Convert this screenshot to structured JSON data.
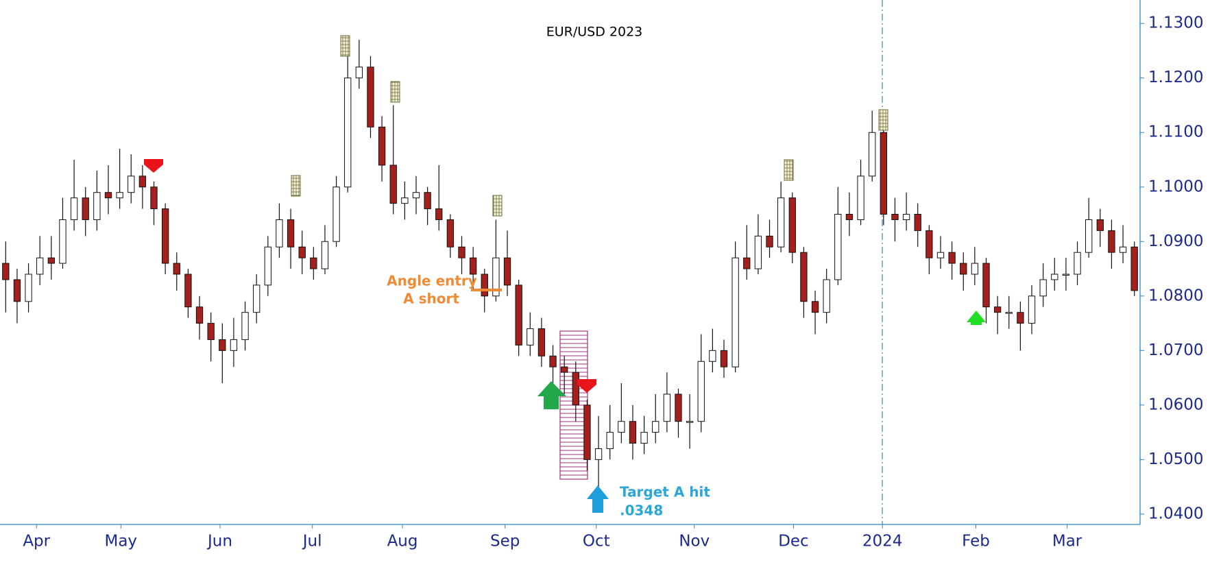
{
  "chart_data": {
    "type": "candlestick",
    "title": "EUR/USD 2023",
    "open": [
      1.086,
      1.083,
      1.079,
      1.084,
      1.087,
      1.086,
      1.094,
      1.098,
      1.094,
      1.099,
      1.098,
      1.099,
      1.102,
      1.1,
      1.096,
      1.086,
      1.084,
      1.078,
      1.075,
      1.072,
      1.07,
      1.072,
      1.077,
      1.082,
      1.089,
      1.094,
      1.089,
      1.087,
      1.085,
      1.09,
      1.1,
      1.12,
      1.122,
      1.111,
      1.104,
      1.097,
      1.098,
      1.099,
      1.096,
      1.094,
      1.089,
      1.087,
      1.084,
      1.08,
      1.087,
      1.082,
      1.071,
      1.074,
      1.069,
      1.067,
      1.066,
      1.06,
      1.05,
      1.052,
      1.055,
      1.057,
      1.053,
      1.055,
      1.057,
      1.062,
      1.057,
      1.057,
      1.068,
      1.07,
      1.067,
      1.087,
      1.085,
      1.091,
      1.089,
      1.098,
      1.088,
      1.079,
      1.077,
      1.083,
      1.095,
      1.094,
      1.102,
      1.11,
      1.095,
      1.094,
      1.095,
      1.092,
      1.087,
      1.088,
      1.086,
      1.084,
      1.086,
      1.078,
      1.077,
      1.077,
      1.075,
      1.08,
      1.083,
      1.084,
      1.084,
      1.088,
      1.094,
      1.092,
      1.088,
      1.089
    ],
    "high": [
      1.09,
      1.085,
      1.086,
      1.091,
      1.091,
      1.098,
      1.105,
      1.1,
      1.103,
      1.104,
      1.107,
      1.106,
      1.104,
      1.101,
      1.097,
      1.088,
      1.085,
      1.08,
      1.077,
      1.075,
      1.076,
      1.079,
      1.084,
      1.091,
      1.097,
      1.096,
      1.092,
      1.089,
      1.093,
      1.102,
      1.124,
      1.127,
      1.124,
      1.113,
      1.115,
      1.101,
      1.102,
      1.1,
      1.104,
      1.095,
      1.091,
      1.089,
      1.085,
      1.094,
      1.092,
      1.083,
      1.077,
      1.076,
      1.071,
      1.069,
      1.068,
      1.061,
      1.058,
      1.06,
      1.064,
      1.06,
      1.058,
      1.062,
      1.066,
      1.063,
      1.062,
      1.073,
      1.074,
      1.072,
      1.09,
      1.093,
      1.095,
      1.094,
      1.101,
      1.099,
      1.089,
      1.081,
      1.085,
      1.1,
      1.099,
      1.105,
      1.114,
      1.112,
      1.098,
      1.099,
      1.097,
      1.093,
      1.091,
      1.09,
      1.088,
      1.089,
      1.087,
      1.08,
      1.08,
      1.079,
      1.082,
      1.086,
      1.087,
      1.087,
      1.09,
      1.098,
      1.096,
      1.094,
      1.093,
      1.09
    ],
    "low": [
      1.077,
      1.075,
      1.077,
      1.082,
      1.083,
      1.085,
      1.092,
      1.091,
      1.092,
      1.095,
      1.096,
      1.097,
      1.096,
      1.093,
      1.084,
      1.081,
      1.076,
      1.072,
      1.068,
      1.064,
      1.067,
      1.07,
      1.075,
      1.08,
      1.087,
      1.085,
      1.084,
      1.083,
      1.084,
      1.089,
      1.099,
      1.118,
      1.109,
      1.101,
      1.095,
      1.094,
      1.095,
      1.093,
      1.092,
      1.087,
      1.084,
      1.081,
      1.077,
      1.079,
      1.08,
      1.069,
      1.069,
      1.067,
      1.064,
      1.062,
      1.057,
      1.048,
      1.045,
      1.05,
      1.053,
      1.05,
      1.051,
      1.053,
      1.055,
      1.054,
      1.052,
      1.055,
      1.066,
      1.065,
      1.066,
      1.083,
      1.084,
      1.087,
      1.088,
      1.086,
      1.076,
      1.073,
      1.075,
      1.082,
      1.091,
      1.093,
      1.101,
      1.093,
      1.09,
      1.092,
      1.089,
      1.084,
      1.085,
      1.083,
      1.081,
      1.082,
      1.075,
      1.073,
      1.074,
      1.07,
      1.073,
      1.078,
      1.081,
      1.081,
      1.082,
      1.087,
      1.089,
      1.085,
      1.086,
      1.08
    ],
    "close": [
      1.083,
      1.079,
      1.084,
      1.087,
      1.086,
      1.094,
      1.098,
      1.094,
      1.099,
      1.098,
      1.099,
      1.102,
      1.1,
      1.096,
      1.086,
      1.084,
      1.078,
      1.075,
      1.072,
      1.07,
      1.072,
      1.077,
      1.082,
      1.089,
      1.094,
      1.089,
      1.087,
      1.085,
      1.09,
      1.1,
      1.12,
      1.122,
      1.111,
      1.104,
      1.097,
      1.098,
      1.099,
      1.096,
      1.094,
      1.089,
      1.087,
      1.084,
      1.08,
      1.087,
      1.082,
      1.071,
      1.074,
      1.069,
      1.067,
      1.066,
      1.06,
      1.05,
      1.052,
      1.055,
      1.057,
      1.053,
      1.055,
      1.057,
      1.062,
      1.057,
      1.057,
      1.068,
      1.07,
      1.067,
      1.087,
      1.085,
      1.091,
      1.089,
      1.098,
      1.088,
      1.079,
      1.077,
      1.083,
      1.095,
      1.094,
      1.102,
      1.11,
      1.095,
      1.094,
      1.095,
      1.092,
      1.087,
      1.088,
      1.086,
      1.084,
      1.086,
      1.078,
      1.077,
      1.077,
      1.075,
      1.08,
      1.083,
      1.084,
      1.084,
      1.088,
      1.094,
      1.092,
      1.088,
      1.089,
      1.081
    ],
    "up_color": "#ffffff",
    "down_color": "#a3201c",
    "xlim": [
      -0.5,
      99.5
    ],
    "xticks": [
      {
        "value": 2.7,
        "label": "Apr"
      },
      {
        "value": 10.1,
        "label": "May"
      },
      {
        "value": 18.8,
        "label": "Jun"
      },
      {
        "value": 26.9,
        "label": "Jul"
      },
      {
        "value": 34.8,
        "label": "Aug"
      },
      {
        "value": 43.8,
        "label": "Sep"
      },
      {
        "value": 51.8,
        "label": "Oct"
      },
      {
        "value": 60.4,
        "label": "Nov"
      },
      {
        "value": 69.1,
        "label": "Dec"
      },
      {
        "value": 76.9,
        "label": "2024"
      },
      {
        "value": 85.1,
        "label": "Feb"
      },
      {
        "value": 93.1,
        "label": "Mar"
      }
    ],
    "ylim": [
      1.0381,
      1.1343
    ],
    "yticks": [
      {
        "value": 1.04,
        "label": "1.0400"
      },
      {
        "value": 1.05,
        "label": "1.0500"
      },
      {
        "value": 1.06,
        "label": "1.0600"
      },
      {
        "value": 1.07,
        "label": "1.0700"
      },
      {
        "value": 1.08,
        "label": "1.0800"
      },
      {
        "value": 1.09,
        "label": "1.0900"
      },
      {
        "value": 1.1,
        "label": "1.1000"
      },
      {
        "value": 1.11,
        "label": "1.1100"
      },
      {
        "value": 1.12,
        "label": "1.1200"
      },
      {
        "value": 1.13,
        "label": "1.1300"
      }
    ],
    "annotations": [
      "Angle entry",
      "A short",
      "Target A hit",
      ".0348"
    ]
  }
}
